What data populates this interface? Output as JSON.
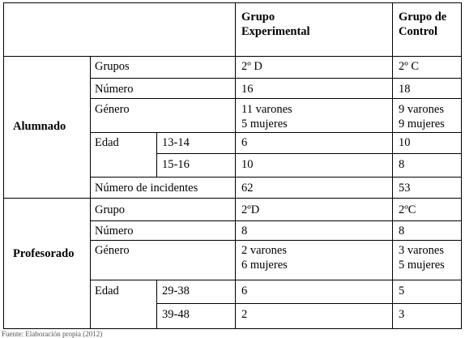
{
  "header": {
    "experimental_line1": "Grupo",
    "experimental_line2": "Experimental",
    "control_line1": "Grupo de",
    "control_line2": "Control"
  },
  "alumnado": {
    "section_label": "Alumnado",
    "grupos": {
      "label": "Grupos",
      "exp": "2º D",
      "ctl": "2º C"
    },
    "numero": {
      "label": "Número",
      "exp": "16",
      "ctl": "18"
    },
    "genero": {
      "label": "Género",
      "exp_1": "11 varones",
      "exp_2": "5 mujeres",
      "ctl_1": "9 varones",
      "ctl_2": "9 mujeres"
    },
    "edad": {
      "label": "Edad",
      "range_1": "13-14",
      "exp_1": "6",
      "ctl_1": "10",
      "range_2": "15-16",
      "exp_2": "10",
      "ctl_2": "8"
    },
    "incidentes": {
      "label": "Número de incidentes",
      "exp": "62",
      "ctl": "53"
    }
  },
  "profesorado": {
    "section_label": "Profesorado",
    "grupo": {
      "label": "Grupo",
      "exp": "2ºD",
      "ctl": "2ºC"
    },
    "numero": {
      "label": "Número",
      "exp": "8",
      "ctl": "8"
    },
    "genero": {
      "label": "Género",
      "exp_1": "2 varones",
      "exp_2": "6 mujeres",
      "ctl_1": "3 varones",
      "ctl_2": "5 mujeres"
    },
    "edad": {
      "label": "Edad",
      "range_1": "29-38",
      "exp_1": "6",
      "ctl_1": "5",
      "range_2": "39-48",
      "exp_2": "2",
      "ctl_2": "3"
    }
  },
  "source_note": "Fuente: Elaboración propia (2012)"
}
